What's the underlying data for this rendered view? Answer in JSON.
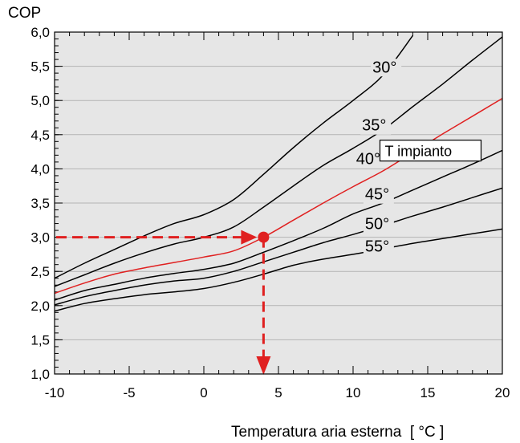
{
  "chart_data": {
    "type": "line",
    "ylabel": "COP",
    "xlabel": "Temperatura aria esterna  [ °C ]",
    "xlim": [
      -10,
      20
    ],
    "ylim": [
      1.0,
      6.0
    ],
    "x_ticks": [
      -10,
      -5,
      0,
      5,
      10,
      15,
      20
    ],
    "x_tick_labels": [
      "-10",
      "-5",
      "0",
      "5",
      "10",
      "15",
      "20"
    ],
    "y_ticks": [
      1.0,
      1.5,
      2.0,
      2.5,
      3.0,
      3.5,
      4.0,
      4.5,
      5.0,
      5.5,
      6.0
    ],
    "y_tick_labels": [
      "1,0",
      "1,5",
      "2,0",
      "2,5",
      "3,0",
      "3,5",
      "4,0",
      "4,5",
      "5,0",
      "5,5",
      "6,0"
    ],
    "grid": true,
    "annotation_box": "T impianto",
    "series": [
      {
        "name": "30°",
        "color": "#000000",
        "x": [
          -10,
          -8,
          -6,
          -4,
          -2,
          0,
          2,
          4,
          6,
          8,
          10,
          12,
          14
        ],
        "y": [
          2.4,
          2.62,
          2.82,
          3.02,
          3.2,
          3.33,
          3.55,
          3.92,
          4.31,
          4.67,
          5.0,
          5.37,
          5.95
        ]
      },
      {
        "name": "35°",
        "color": "#000000",
        "x": [
          -10,
          -8,
          -6,
          -4,
          -2,
          0,
          2,
          4,
          6,
          8,
          10,
          12,
          14,
          16,
          18,
          20
        ],
        "y": [
          2.28,
          2.45,
          2.62,
          2.77,
          2.9,
          3.0,
          3.15,
          3.44,
          3.75,
          4.05,
          4.3,
          4.57,
          4.91,
          5.24,
          5.59,
          5.93
        ]
      },
      {
        "name": "40°",
        "color": "#e02020",
        "x": [
          -10,
          -8,
          -6,
          -4,
          -2,
          0,
          2,
          4,
          6,
          8,
          10,
          12,
          14,
          16,
          18,
          20
        ],
        "y": [
          2.18,
          2.33,
          2.46,
          2.55,
          2.63,
          2.71,
          2.8,
          3.0,
          3.25,
          3.5,
          3.74,
          3.97,
          4.24,
          4.51,
          4.77,
          5.03
        ]
      },
      {
        "name": "45°",
        "color": "#000000",
        "x": [
          -10,
          -8,
          -6,
          -4,
          -2,
          0,
          2,
          4,
          6,
          8,
          10,
          12,
          14,
          16,
          18,
          20
        ],
        "y": [
          2.08,
          2.22,
          2.31,
          2.4,
          2.47,
          2.53,
          2.62,
          2.78,
          2.95,
          3.13,
          3.34,
          3.5,
          3.69,
          3.88,
          4.07,
          4.27
        ]
      },
      {
        "name": "50°",
        "color": "#000000",
        "x": [
          -10,
          -8,
          -6,
          -4,
          -2,
          0,
          2,
          4,
          6,
          8,
          10,
          12,
          14,
          16,
          18,
          20
        ],
        "y": [
          2.01,
          2.13,
          2.22,
          2.3,
          2.36,
          2.4,
          2.5,
          2.64,
          2.78,
          2.92,
          3.04,
          3.17,
          3.31,
          3.44,
          3.58,
          3.72
        ]
      },
      {
        "name": "55°",
        "color": "#000000",
        "x": [
          -10,
          -8,
          -6,
          -4,
          -2,
          0,
          2,
          4,
          6,
          8,
          10,
          12,
          14,
          16,
          18,
          20
        ],
        "y": [
          1.92,
          2.03,
          2.1,
          2.16,
          2.2,
          2.25,
          2.34,
          2.46,
          2.59,
          2.68,
          2.75,
          2.83,
          2.91,
          2.98,
          3.05,
          3.12
        ]
      }
    ],
    "curve_labels": [
      {
        "text": "30°",
        "x": 11.3,
        "y": 5.41
      },
      {
        "text": "35°",
        "x": 10.6,
        "y": 4.56
      },
      {
        "text": "40°",
        "x": 10.2,
        "y": 4.07
      },
      {
        "text": "45°",
        "x": 10.8,
        "y": 3.55
      },
      {
        "text": "50°",
        "x": 10.8,
        "y": 3.12
      },
      {
        "text": "55°",
        "x": 10.8,
        "y": 2.79
      }
    ],
    "operating_point": {
      "x": 4,
      "y": 3.0,
      "color": "#e02020"
    }
  }
}
